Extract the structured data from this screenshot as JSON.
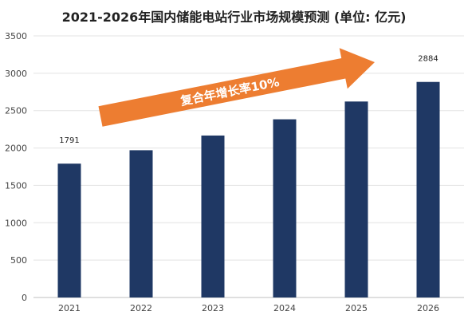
{
  "chart_data": {
    "type": "bar",
    "title": "2021-2026年国内储能电站行业市场规模预测 (单位: 亿元)",
    "categories": [
      "2021",
      "2022",
      "2023",
      "2024",
      "2025",
      "2026"
    ],
    "values": [
      1791,
      1970,
      2167,
      2384,
      2622,
      2884
    ],
    "data_labels": [
      {
        "index": 0,
        "text": "1791"
      },
      {
        "index": 5,
        "text": "2884"
      }
    ],
    "ylim": [
      0,
      3500
    ],
    "yticks": [
      0,
      500,
      1000,
      1500,
      2000,
      2500,
      3000,
      3500
    ],
    "grid": true,
    "annotation": "复合年增长率10%",
    "bar_color": "#1f3864",
    "arrow_color": "#ed7d31"
  }
}
